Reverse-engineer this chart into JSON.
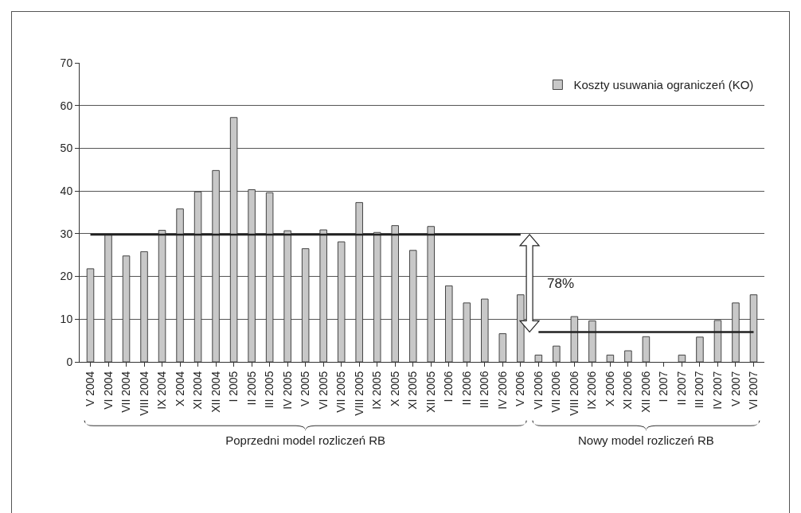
{
  "chart_data": {
    "type": "bar",
    "categories": [
      "V 2004",
      "VI 2004",
      "VII 2004",
      "VIII 2004",
      "IX 2004",
      "X 2004",
      "XI 2004",
      "XII 2004",
      "I 2005",
      "II 2005",
      "III 2005",
      "IV 2005",
      "V 2005",
      "VI 2005",
      "VII 2005",
      "VIII 2005",
      "IX 2005",
      "X 2005",
      "XI 2005",
      "XII 2005",
      "I 2006",
      "II 2006",
      "III 2006",
      "IV 2006",
      "V 2006",
      "VI 2006",
      "VII 2006",
      "VIII 2006",
      "IX 2006",
      "X 2006",
      "XI 2006",
      "XII 2006",
      "I 2007",
      "II 2007",
      "III 2007",
      "IV 2007",
      "V 2007",
      "VI 2007"
    ],
    "series": [
      {
        "name": "Koszty usuwania ograniczeń (KO)",
        "color": "#c8c8c8",
        "values": [
          21.8,
          29.8,
          24.8,
          25.8,
          30.8,
          35.8,
          39.8,
          44.8,
          57.2,
          40.3,
          39.6,
          30.7,
          26.5,
          30.9,
          28.1,
          37.3,
          30.3,
          31.9,
          26.1,
          31.7,
          17.8,
          13.8,
          14.7,
          6.6,
          15.7,
          1.6,
          3.7,
          10.6,
          9.6,
          1.6,
          2.6,
          5.9,
          null,
          1.6,
          5.8,
          9.7,
          13.8,
          15.7
        ]
      },
      {
        "type": "line",
        "color": "#222222",
        "values": [
          29.8,
          29.8,
          29.8,
          29.8,
          29.8,
          29.8,
          29.8,
          29.8,
          29.8,
          29.8,
          29.8,
          29.8,
          29.8,
          29.8,
          29.8,
          29.8,
          29.8,
          29.8,
          29.8,
          29.8,
          29.8,
          29.8,
          29.8,
          29.8,
          29.8,
          null,
          null,
          null,
          null,
          null,
          null,
          null,
          null,
          null,
          null,
          null,
          null,
          null
        ]
      },
      {
        "type": "line",
        "color": "#222222",
        "values": [
          null,
          null,
          null,
          null,
          null,
          null,
          null,
          null,
          null,
          null,
          null,
          null,
          null,
          null,
          null,
          null,
          null,
          null,
          null,
          null,
          null,
          null,
          null,
          null,
          null,
          7,
          7,
          7,
          7,
          7,
          7,
          7,
          7,
          7,
          7,
          7,
          7,
          7
        ]
      }
    ],
    "annotations": [
      "78%",
      "Poprzedni model rozliczeń RB",
      "Nowy model rozliczeń RB"
    ],
    "ylim": [
      0,
      70
    ],
    "yticks": [
      0,
      10,
      20,
      30,
      40,
      50,
      60,
      70
    ],
    "grid": "y",
    "legend": "top right",
    "marker": "none",
    "line_style": "solid"
  }
}
